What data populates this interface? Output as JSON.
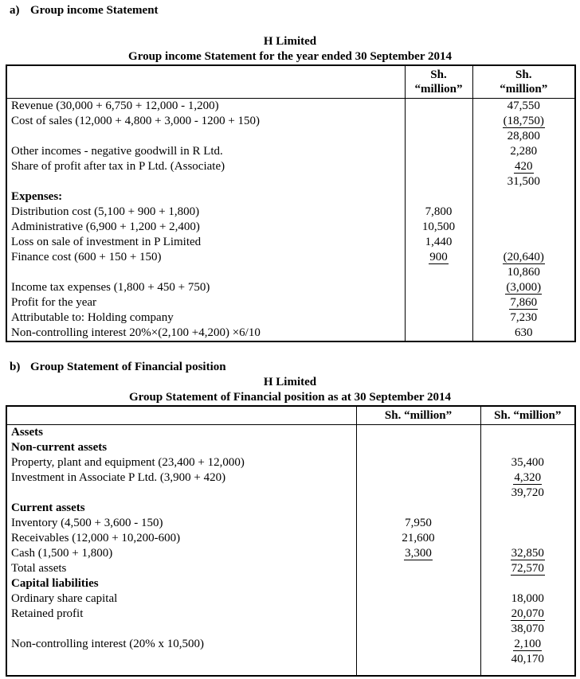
{
  "section_a": {
    "label": "a)",
    "heading": "Group income Statement",
    "company": "H Limited",
    "title": "Group income Statement for the year ended 30 September 2014",
    "col_header": {
      "line1": "Sh.",
      "line2": "“million”"
    },
    "rows": [
      {
        "desc": "Revenue (30,000 + 6,750 + 12,000 - 1,200)",
        "col2": "47,550"
      },
      {
        "desc": "Cost of sales (12,000 + 4,800 + 3,000 - 1200 + 150)",
        "col2": "(18,750)",
        "u2": true
      },
      {
        "desc": "",
        "col2": "28,800"
      },
      {
        "desc": "Other incomes - negative goodwill in R Ltd.",
        "col2": "2,280"
      },
      {
        "desc": "Share of profit after tax in P Ltd. (Associate)",
        "indent": 1,
        "col2": "420",
        "u2": true
      },
      {
        "desc": "",
        "col2": "31,500"
      },
      {
        "desc": "Expenses:",
        "bold": true
      },
      {
        "desc": "Distribution cost (5,100 + 900 + 1,800)",
        "col1": "7,800"
      },
      {
        "desc": "Administrative (6,900 + 1,200 + 2,400)",
        "col1": "10,500"
      },
      {
        "desc": "Loss on sale of investment in P Limited",
        "col1": "1,440"
      },
      {
        "desc": "Finance cost (600 + 150 + 150)",
        "col1": "900",
        "u1": true,
        "col2": "(20,640)",
        "u2": true
      },
      {
        "desc": "",
        "col2": "10,860"
      },
      {
        "desc": "Income tax expenses (1,800 + 450 + 750)",
        "col2": "(3,000)",
        "u2": true
      },
      {
        "desc": "Profit for the year",
        "col2": "7,860",
        "u2": true
      },
      {
        "desc": "Attributable to: Holding company",
        "col2": "7,230"
      },
      {
        "desc": "Non-controlling interest 20%×(2,100 +4,200) ×6/10",
        "indent": 2,
        "col2": "630"
      }
    ]
  },
  "section_b": {
    "label": "b)",
    "heading": "Group Statement of Financial position",
    "company": "H Limited",
    "title": "Group Statement of Financial position as at 30 September 2014",
    "col_header": {
      "text": "Sh. “million”"
    },
    "rows": [
      {
        "desc": "Assets",
        "bold": true
      },
      {
        "desc": "Non-current assets",
        "bold": true
      },
      {
        "desc": "Property, plant and equipment (23,400 + 12,000)",
        "col2": "35,400"
      },
      {
        "desc": "Investment in Associate P Ltd. (3,900 + 420)",
        "col2": "4,320",
        "u2": true
      },
      {
        "desc": "",
        "col2": "39,720"
      },
      {
        "desc": "Current assets",
        "bold": true
      },
      {
        "desc": "Inventory (4,500 + 3,600 - 150)",
        "col1": "7,950"
      },
      {
        "desc": "Receivables (12,000 + 10,200-600)",
        "col1": "21,600"
      },
      {
        "desc": "Cash (1,500 + 1,800)",
        "col1": "3,300",
        "u1": true,
        "col2": "32,850",
        "u2": true
      },
      {
        "desc": "Total assets",
        "col2": "72,570",
        "u2": true
      },
      {
        "desc": "Capital liabilities",
        "bold": true
      },
      {
        "desc": "Ordinary share capital",
        "col2": "18,000"
      },
      {
        "desc": "Retained profit",
        "col2": "20,070",
        "u2": true
      },
      {
        "desc": "",
        "col2": "38,070"
      },
      {
        "desc": "Non-controlling interest (20% x 10,500)",
        "col2": "2,100",
        "u2": true
      },
      {
        "desc": "",
        "col2": "40,170"
      }
    ]
  }
}
